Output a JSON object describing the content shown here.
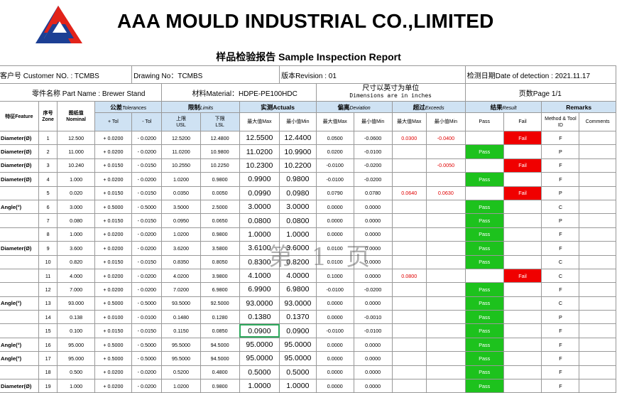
{
  "company": "AAA MOULD INDUSTRIAL CO.,LIMITED",
  "report_title": "样品检验报告 Sample Inspection Report",
  "info": {
    "customer_no": "客户号 Customer NO. : TCMBS",
    "drawing_no": "Drawing No：TCMBS",
    "revision": "版本Revision : 01",
    "inspection_date": "检测日期Date of detection  :  2021.11.17",
    "part_name": "零件名称 Part Name  :   Brewer Stand",
    "material": "材料Material：HDPE-PE100HDC",
    "units_cn": "尺寸以英寸为单位",
    "units_en": "Dimensions are in inches",
    "page": "页数Page  1/1"
  },
  "headers": {
    "feature": "特征Feature",
    "zone_cn": "序号",
    "zone_en": "Zone",
    "nominal_cn": "图纸值",
    "nominal_en": "Nominal",
    "tolerances": "公差",
    "tolerances_en": "Tolerances",
    "limits": "限制",
    "limits_en": "Limits",
    "actuals": "实测Actuals",
    "deviation": "偏离",
    "deviation_en": "Deviation",
    "exceeds": "超过",
    "exceeds_en": "Exceeds",
    "result": "结果",
    "result_en": "Result",
    "remarks": "Remarks",
    "plus_tol": "+ Tol",
    "minus_tol": "- Tol",
    "usl_cn": "上限",
    "usl_en": "USL",
    "lsl_cn": "下限",
    "lsl_en": "LSL",
    "max": "最大值Max",
    "min": "最小值Min",
    "pass": "Pass",
    "fail": "Fail",
    "method": "Method & Tool ID",
    "comments": "Comments"
  },
  "rows": [
    {
      "feature": "Diameter(Ø)",
      "zone": "1",
      "nominal": "12.500",
      "ptol": "+ 0.0200",
      "mtol": "- 0.0200",
      "usl": "12.5200",
      "lsl": "12.4800",
      "amax": "12.5500",
      "amin": "12.4400",
      "dmax": "0.0500",
      "dmin": "-0.0600",
      "emax": "0.0300",
      "emin": "-0.0400",
      "pass": "",
      "fail": "Fail",
      "method": "F"
    },
    {
      "feature": "Diameter(Ø)",
      "zone": "2",
      "nominal": "11.000",
      "ptol": "+ 0.0200",
      "mtol": "- 0.0200",
      "usl": "11.0200",
      "lsl": "10.9800",
      "amax": "11.0200",
      "amin": "10.9900",
      "dmax": "0.0200",
      "dmin": "-0.0100",
      "emax": "",
      "emin": "",
      "pass": "Pass",
      "fail": "",
      "method": "P"
    },
    {
      "feature": "Diameter(Ø)",
      "zone": "3",
      "nominal": "10.240",
      "ptol": "+ 0.0150",
      "mtol": "- 0.0150",
      "usl": "10.2550",
      "lsl": "10.2250",
      "amax": "10.2300",
      "amin": "10.2200",
      "dmax": "-0.0100",
      "dmin": "-0.0200",
      "emax": "",
      "emin": "-0.0050",
      "pass": "",
      "fail": "Fail",
      "method": "F"
    },
    {
      "feature": "Diameter(Ø)",
      "zone": "4",
      "nominal": "1.000",
      "ptol": "+ 0.0200",
      "mtol": "- 0.0200",
      "usl": "1.0200",
      "lsl": "0.9800",
      "amax": "0.9900",
      "amin": "0.9800",
      "dmax": "-0.0100",
      "dmin": "-0.0200",
      "emax": "",
      "emin": "",
      "pass": "Pass",
      "fail": "",
      "method": "F"
    },
    {
      "feature": "",
      "zone": "5",
      "nominal": "0.020",
      "ptol": "+ 0.0150",
      "mtol": "- 0.0150",
      "usl": "0.0350",
      "lsl": "0.0050",
      "amax": "0.0990",
      "amin": "0.0980",
      "dmax": "0.0790",
      "dmin": "0.0780",
      "emax": "0.0640",
      "emin": "0.0630",
      "pass": "",
      "fail": "Fail",
      "method": "P"
    },
    {
      "feature": "Angle(°)",
      "zone": "6",
      "nominal": "3.000",
      "ptol": "+ 0.5000",
      "mtol": "- 0.5000",
      "usl": "3.5000",
      "lsl": "2.5000",
      "amax": "3.0000",
      "amin": "3.0000",
      "dmax": "0.0000",
      "dmin": "0.0000",
      "emax": "",
      "emin": "",
      "pass": "Pass",
      "fail": "",
      "method": "C"
    },
    {
      "feature": "",
      "zone": "7",
      "nominal": "0.080",
      "ptol": "+ 0.0150",
      "mtol": "- 0.0150",
      "usl": "0.0950",
      "lsl": "0.0650",
      "amax": "0.0800",
      "amin": "0.0800",
      "dmax": "0.0000",
      "dmin": "0.0000",
      "emax": "",
      "emin": "",
      "pass": "Pass",
      "fail": "",
      "method": "P"
    },
    {
      "feature": "",
      "zone": "8",
      "nominal": "1.000",
      "ptol": "+ 0.0200",
      "mtol": "- 0.0200",
      "usl": "1.0200",
      "lsl": "0.9800",
      "amax": "1.0000",
      "amin": "1.0000",
      "dmax": "0.0000",
      "dmin": "0.0000",
      "emax": "",
      "emin": "",
      "pass": "Pass",
      "fail": "",
      "method": "F"
    },
    {
      "feature": "Diameter(Ø)",
      "zone": "9",
      "nominal": "3.600",
      "ptol": "+ 0.0200",
      "mtol": "- 0.0200",
      "usl": "3.6200",
      "lsl": "3.5800",
      "amax": "3.6100",
      "amin": "3.6000",
      "dmax": "0.0100",
      "dmin": "0.0000",
      "emax": "",
      "emin": "",
      "pass": "Pass",
      "fail": "",
      "method": "F"
    },
    {
      "feature": "",
      "zone": "10",
      "nominal": "0.820",
      "ptol": "+ 0.0150",
      "mtol": "- 0.0150",
      "usl": "0.8350",
      "lsl": "0.8050",
      "amax": "0.8300",
      "amin": "0.8200",
      "dmax": "0.0100",
      "dmin": "0.0000",
      "emax": "",
      "emin": "",
      "pass": "Pass",
      "fail": "",
      "method": "C"
    },
    {
      "feature": "",
      "zone": "11",
      "nominal": "4.000",
      "ptol": "+ 0.0200",
      "mtol": "- 0.0200",
      "usl": "4.0200",
      "lsl": "3.9800",
      "amax": "4.1000",
      "amin": "4.0000",
      "dmax": "0.1000",
      "dmin": "0.0000",
      "emax": "0.0800",
      "emin": "",
      "pass": "",
      "fail": "Fail",
      "method": "C"
    },
    {
      "feature": "",
      "zone": "12",
      "nominal": "7.000",
      "ptol": "+ 0.0200",
      "mtol": "- 0.0200",
      "usl": "7.0200",
      "lsl": "6.9800",
      "amax": "6.9900",
      "amin": "6.9800",
      "dmax": "-0.0100",
      "dmin": "-0.0200",
      "emax": "",
      "emin": "",
      "pass": "Pass",
      "fail": "",
      "method": "F"
    },
    {
      "feature": "Angle(°)",
      "zone": "13",
      "nominal": "93.000",
      "ptol": "+ 0.5000",
      "mtol": "- 0.5000",
      "usl": "93.5000",
      "lsl": "92.5000",
      "amax": "93.0000",
      "amin": "93.0000",
      "dmax": "0.0000",
      "dmin": "0.0000",
      "emax": "",
      "emin": "",
      "pass": "Pass",
      "fail": "",
      "method": "C"
    },
    {
      "feature": "",
      "zone": "14",
      "nominal": "0.138",
      "ptol": "+ 0.0100",
      "mtol": "- 0.0100",
      "usl": "0.1480",
      "lsl": "0.1280",
      "amax": "0.1380",
      "amin": "0.1370",
      "dmax": "0.0000",
      "dmin": "-0.0010",
      "emax": "",
      "emin": "",
      "pass": "Pass",
      "fail": "",
      "method": "P"
    },
    {
      "feature": "",
      "zone": "15",
      "nominal": "0.100",
      "ptol": "+ 0.0150",
      "mtol": "- 0.0150",
      "usl": "0.1150",
      "lsl": "0.0850",
      "amax": "0.0900",
      "amin": "0.0900",
      "dmax": "-0.0100",
      "dmin": "-0.0100",
      "emax": "",
      "emin": "",
      "pass": "Pass",
      "fail": "",
      "method": "F"
    },
    {
      "feature": "Angle(°)",
      "zone": "16",
      "nominal": "95.000",
      "ptol": "+ 0.5000",
      "mtol": "- 0.5000",
      "usl": "95.5000",
      "lsl": "94.5000",
      "amax": "95.0000",
      "amin": "95.0000",
      "dmax": "0.0000",
      "dmin": "0.0000",
      "emax": "",
      "emin": "",
      "pass": "Pass",
      "fail": "",
      "method": "F"
    },
    {
      "feature": "Angle(°)",
      "zone": "17",
      "nominal": "95.000",
      "ptol": "+ 0.5000",
      "mtol": "- 0.5000",
      "usl": "95.5000",
      "lsl": "94.5000",
      "amax": "95.0000",
      "amin": "95.0000",
      "dmax": "0.0000",
      "dmin": "0.0000",
      "emax": "",
      "emin": "",
      "pass": "Pass",
      "fail": "",
      "method": "F"
    },
    {
      "feature": "",
      "zone": "18",
      "nominal": "0.500",
      "ptol": "+ 0.0200",
      "mtol": "- 0.0200",
      "usl": "0.5200",
      "lsl": "0.4800",
      "amax": "0.5000",
      "amin": "0.5000",
      "dmax": "0.0000",
      "dmin": "0.0000",
      "emax": "",
      "emin": "",
      "pass": "Pass",
      "fail": "",
      "method": "F"
    },
    {
      "feature": "Diameter(Ø)",
      "zone": "19",
      "nominal": "1.000",
      "ptol": "+ 0.0200",
      "mtol": "- 0.0200",
      "usl": "1.0200",
      "lsl": "0.9800",
      "amax": "1.0000",
      "amin": "1.0000",
      "dmax": "0.0000",
      "dmin": "0.0000",
      "emax": "",
      "emin": "",
      "pass": "Pass",
      "fail": "",
      "method": "F"
    }
  ],
  "watermark": "第 1 页",
  "colors": {
    "pass": "#1dc21d",
    "fail": "#f00000",
    "header": "#cfe2f3",
    "logo_red": "#e2231a",
    "logo_blue": "#1c3f94"
  }
}
